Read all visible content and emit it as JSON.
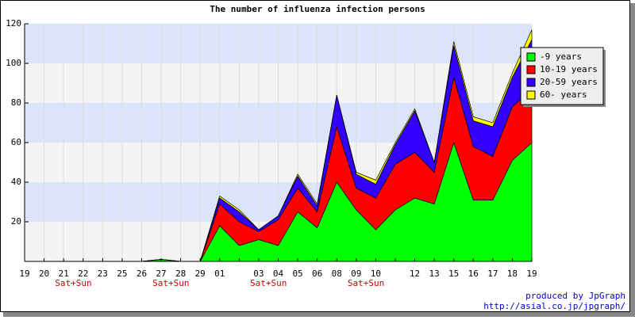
{
  "chart_data": {
    "type": "stacked_area",
    "title": "The number of influenza infection persons",
    "categories": [
      "19",
      "20",
      "21",
      "22",
      "23",
      "25",
      "26",
      "27",
      "28",
      "29",
      "01",
      null,
      "03",
      "04",
      "05",
      "06",
      "08",
      "09",
      "10",
      null,
      "12",
      "13",
      "15",
      "16",
      "17",
      "18",
      "19"
    ],
    "category_notes": [
      null,
      null,
      "Sat+Sun",
      null,
      null,
      null,
      null,
      "Sat+Sun",
      null,
      null,
      null,
      null,
      "Sat+Sun",
      null,
      null,
      null,
      null,
      "Sat+Sun",
      null,
      null,
      null,
      null,
      null,
      null,
      null,
      null,
      null
    ],
    "series": [
      {
        "name": "-9 years",
        "color": "#00ff00",
        "values": [
          0,
          0,
          0,
          0,
          0,
          0,
          0,
          1,
          0,
          0,
          18,
          8,
          11,
          8,
          25,
          17,
          40,
          26,
          16,
          26,
          32,
          29,
          60,
          31,
          31,
          51,
          60
        ]
      },
      {
        "name": "10-19 years",
        "color": "#ff0000",
        "values": [
          0,
          0,
          0,
          0,
          0,
          0,
          0,
          0,
          0,
          0,
          11,
          12,
          4,
          13,
          12,
          8,
          28,
          11,
          16,
          23,
          23,
          16,
          33,
          27,
          22,
          27,
          27
        ]
      },
      {
        "name": "20-59 years",
        "color": "#3300ff",
        "values": [
          0,
          0,
          0,
          0,
          0,
          0,
          0,
          0,
          0,
          0,
          3,
          5,
          1,
          2,
          6,
          3,
          16,
          7,
          7,
          10,
          21,
          5,
          16,
          13,
          15,
          15,
          25
        ]
      },
      {
        "name": "60- years",
        "color": "#ffff00",
        "values": [
          0,
          0,
          0,
          0,
          0,
          0,
          0,
          0,
          0,
          0,
          1,
          1,
          0,
          0,
          1,
          1,
          0,
          1,
          2,
          1,
          1,
          0,
          2,
          2,
          2,
          2,
          5
        ]
      }
    ],
    "ylim": [
      0,
      120
    ],
    "yticks": [
      20,
      40,
      60,
      80,
      100,
      120
    ],
    "band_colors": [
      "#f4f4f4",
      "#dbe4fb"
    ],
    "grid": true,
    "legend_position": "top-right",
    "footer": [
      "produced by JpGraph",
      "http://asial.co.jp/jpgraph/"
    ]
  }
}
